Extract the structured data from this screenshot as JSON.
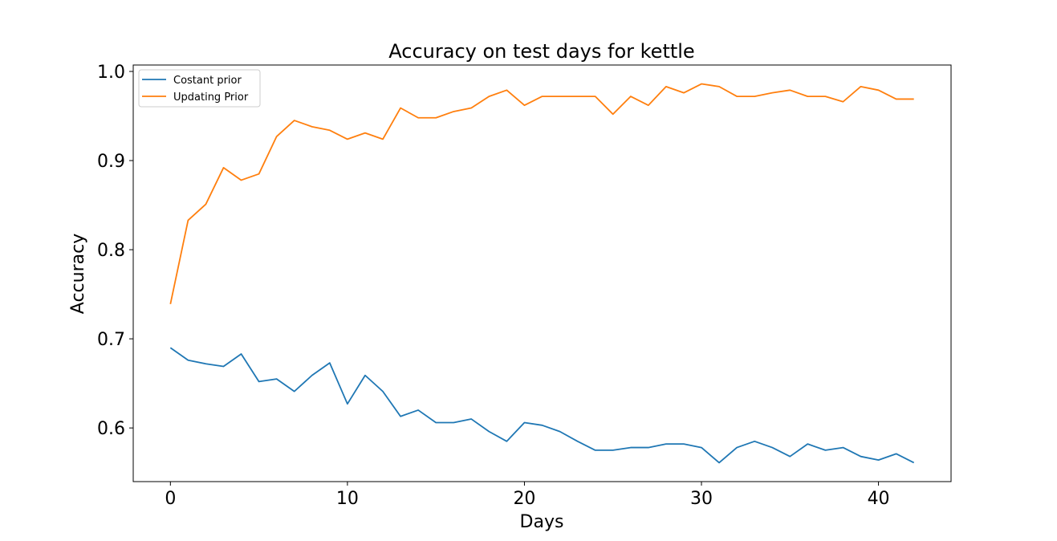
{
  "chart_data": {
    "type": "line",
    "title": "Accuracy on test days for kettle",
    "xlabel": "Days",
    "ylabel": "Accuracy",
    "xlim": [
      -2.1,
      44.1
    ],
    "ylim": [
      0.5398,
      1.0072
    ],
    "xticks": [
      0,
      10,
      20,
      30,
      40
    ],
    "yticks": [
      0.6,
      0.7,
      0.8,
      0.9,
      1.0
    ],
    "xtick_labels": [
      "0",
      "10",
      "20",
      "30",
      "40"
    ],
    "ytick_labels": [
      "0.6",
      "0.7",
      "0.8",
      "0.9",
      "1.0"
    ],
    "legend_position": "top-left",
    "grid": false,
    "x": [
      0,
      1,
      2,
      3,
      4,
      5,
      6,
      7,
      8,
      9,
      10,
      11,
      12,
      13,
      14,
      15,
      16,
      17,
      18,
      19,
      20,
      21,
      22,
      23,
      24,
      25,
      26,
      27,
      28,
      29,
      30,
      31,
      32,
      33,
      34,
      35,
      36,
      37,
      38,
      39,
      40,
      41,
      42
    ],
    "series": [
      {
        "name": "Costant prior",
        "color": "#1f77b4",
        "values": [
          0.69,
          0.676,
          0.672,
          0.669,
          0.683,
          0.652,
          0.655,
          0.641,
          0.659,
          0.673,
          0.627,
          0.659,
          0.641,
          0.613,
          0.62,
          0.606,
          0.606,
          0.61,
          0.596,
          0.585,
          0.606,
          0.603,
          0.596,
          0.585,
          0.575,
          0.575,
          0.578,
          0.578,
          0.582,
          0.582,
          0.578,
          0.561,
          0.578,
          0.585,
          0.578,
          0.568,
          0.582,
          0.575,
          0.578,
          0.568,
          0.564,
          0.571,
          0.561
        ]
      },
      {
        "name": "Updating Prior",
        "color": "#ff7f0e",
        "values": [
          0.739,
          0.833,
          0.851,
          0.892,
          0.878,
          0.885,
          0.927,
          0.945,
          0.938,
          0.934,
          0.924,
          0.931,
          0.924,
          0.959,
          0.948,
          0.948,
          0.955,
          0.959,
          0.972,
          0.979,
          0.962,
          0.972,
          0.972,
          0.972,
          0.972,
          0.952,
          0.972,
          0.962,
          0.983,
          0.976,
          0.986,
          0.983,
          0.972,
          0.972,
          0.976,
          0.979,
          0.972,
          0.972,
          0.966,
          0.983,
          0.979,
          0.969,
          0.969
        ]
      }
    ]
  }
}
